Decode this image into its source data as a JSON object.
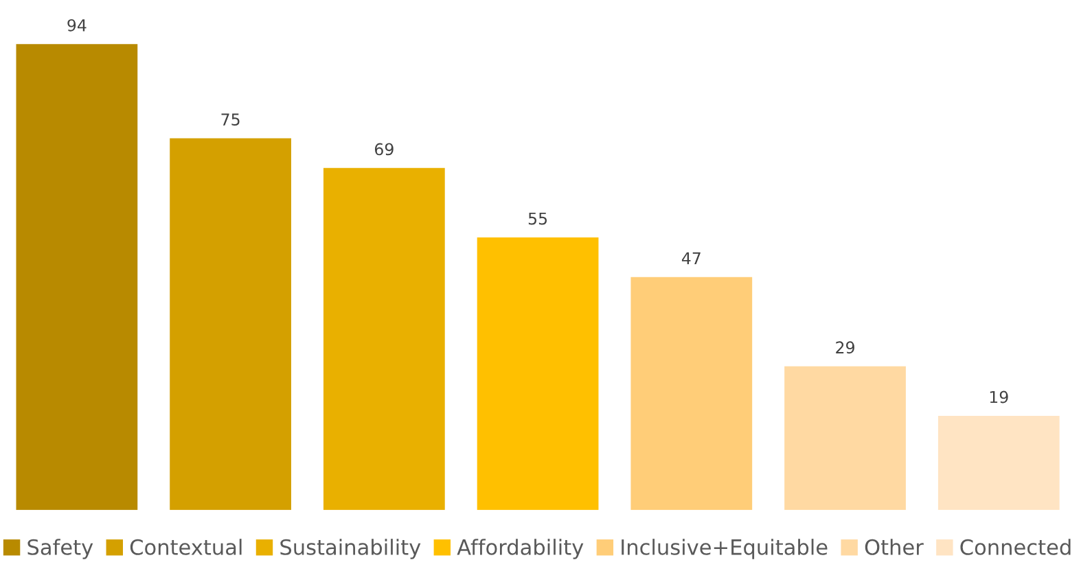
{
  "chart_data": {
    "type": "bar",
    "categories": [
      null,
      null,
      null,
      null,
      null,
      null,
      null
    ],
    "stacked": true,
    "series": [
      {
        "name": "Safety",
        "color": "#b88a00",
        "values": [
          94,
          null,
          null,
          null,
          null,
          null,
          null
        ]
      },
      {
        "name": "Contextual",
        "color": "#d4a000",
        "values": [
          null,
          75,
          null,
          null,
          null,
          null,
          null
        ]
      },
      {
        "name": "Sustainability",
        "color": "#e9b000",
        "values": [
          null,
          null,
          69,
          null,
          null,
          null,
          null
        ]
      },
      {
        "name": "Affordability",
        "color": "#ffc000",
        "values": [
          null,
          null,
          null,
          55,
          null,
          null,
          null
        ]
      },
      {
        "name": "Inclusive+Equitable",
        "color": "#ffcd78",
        "values": [
          null,
          null,
          null,
          null,
          47,
          null,
          null
        ]
      },
      {
        "name": "Other",
        "color": "#ffd9a2",
        "values": [
          null,
          null,
          null,
          null,
          null,
          29,
          null
        ]
      },
      {
        "name": "Connected",
        "color": "#ffe4c3",
        "values": [
          null,
          null,
          null,
          null,
          null,
          null,
          19
        ]
      }
    ],
    "data_labels": true,
    "legend": "bottom"
  }
}
